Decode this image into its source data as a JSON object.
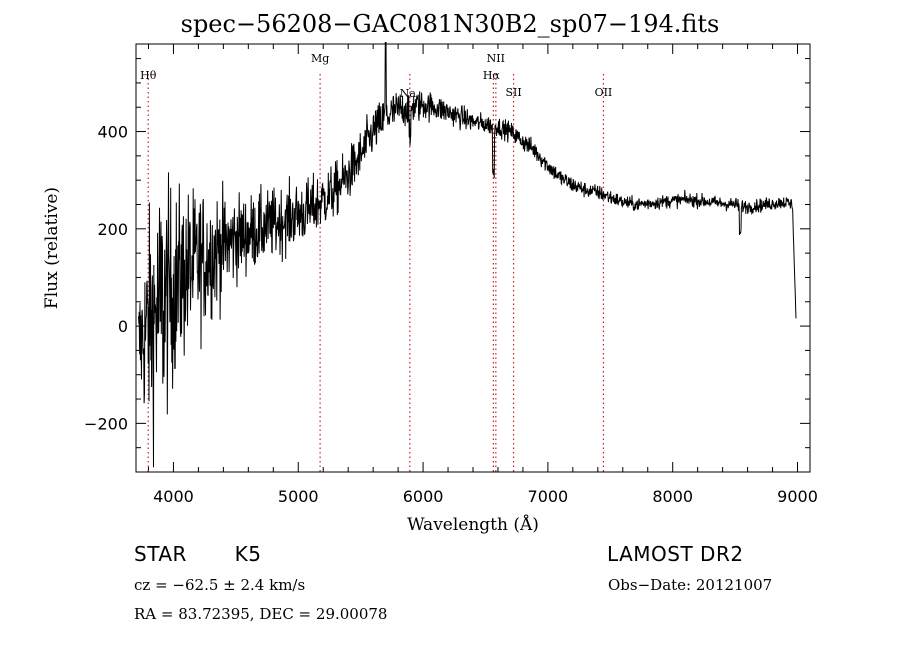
{
  "header": {
    "title": "spec−56208−GAC081N30B2_sp07−194.fits"
  },
  "footer": {
    "class_label": "STAR",
    "subclass": "K5",
    "survey": "LAMOST DR2",
    "redshift": "cz = −62.5 ± 2.4 km/s",
    "coords": "RA =  83.72395, DEC =  29.00078",
    "obs_date": "Obs−Date: 20121007"
  },
  "colors": {
    "spectrum": "#000000",
    "line_markers": "#cc2222",
    "axes": "#000000"
  },
  "chart_data": {
    "type": "line",
    "title": "spec−56208−GAC081N30B2_sp07−194.fits",
    "xlabel": "Wavelength (Å)",
    "ylabel": "Flux (relative)",
    "xlim": [
      3700,
      9100
    ],
    "ylim": [
      -300,
      580
    ],
    "x_ticks": [
      4000,
      5000,
      6000,
      7000,
      8000,
      9000
    ],
    "x_tick_labels": [
      "4000",
      "5000",
      "6000",
      "7000",
      "8000",
      "9000"
    ],
    "y_ticks": [
      -200,
      0,
      200,
      400
    ],
    "y_tick_labels": [
      "−200",
      "0",
      "200",
      "400"
    ],
    "grid": false,
    "lines": [
      {
        "label": "Hθ",
        "wavelength": 3798
      },
      {
        "label": "Mg",
        "wavelength": 5175
      },
      {
        "label": "Na",
        "wavelength": 5894
      },
      {
        "label": "NII",
        "wavelength": 6583
      },
      {
        "label": "Hα",
        "wavelength": 6563
      },
      {
        "label": "SII",
        "wavelength": 6725
      },
      {
        "label": "OII",
        "wavelength": 7445
      }
    ],
    "series": [
      {
        "x": [
          3720,
          3800,
          3900,
          4000,
          4100,
          4200,
          4300,
          4400,
          4500,
          4600,
          4700,
          4800,
          4900,
          5000,
          5100,
          5200,
          5300,
          5400,
          5500,
          5600,
          5700,
          5800,
          5900,
          6000,
          6100,
          6200,
          6300,
          6400,
          6500,
          6600,
          6700,
          6800,
          6900,
          7000,
          7100,
          7200,
          7300,
          7400,
          7500,
          7600,
          7700,
          7800,
          7900,
          8000,
          8100,
          8200,
          8300,
          8400,
          8500,
          8600,
          8700,
          8800,
          8900,
          8960,
          8975,
          8990
        ],
        "y": [
          -40,
          0,
          40,
          80,
          110,
          130,
          150,
          165,
          180,
          190,
          200,
          210,
          220,
          230,
          240,
          260,
          280,
          310,
          350,
          400,
          430,
          445,
          450,
          455,
          450,
          440,
          430,
          420,
          415,
          410,
          400,
          380,
          360,
          330,
          305,
          290,
          280,
          275,
          265,
          255,
          250,
          252,
          255,
          258,
          260,
          258,
          255,
          252,
          250,
          245,
          248,
          252,
          255,
          250,
          120,
          0
        ],
        "noise": [
          60,
          110,
          130,
          100,
          85,
          75,
          65,
          55,
          45,
          40,
          38,
          36,
          34,
          33,
          32,
          30,
          28,
          27,
          26,
          24,
          22,
          20,
          18,
          16,
          14,
          13,
          12,
          11,
          10,
          10,
          10,
          10,
          10,
          9,
          9,
          9,
          8,
          8,
          8,
          7,
          7,
          7,
          7,
          7,
          7,
          7,
          7,
          7,
          7,
          7,
          7,
          7,
          7,
          7,
          0,
          0
        ]
      }
    ]
  }
}
